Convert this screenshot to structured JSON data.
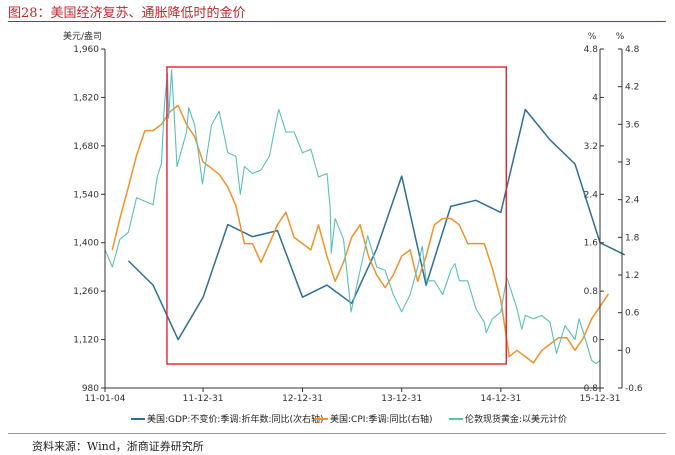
{
  "figure": {
    "title": "图28：美国经济复苏、通胀降低时的金价",
    "source": "资料来源：Wind，浙商证券研究所"
  },
  "chart_data": {
    "type": "line",
    "x_ticks": [
      "11-01-04",
      "11-12-31",
      "12-12-31",
      "13-12-31",
      "14-12-31",
      "15-12-31"
    ],
    "x_range": [
      "2011-01-04",
      "2015-12-31"
    ],
    "left_axis": {
      "unit": "美元/盎司",
      "ticks": [
        "980",
        "1,120",
        "1,260",
        "1,400",
        "1,540",
        "1,680",
        "1,820",
        "1,960"
      ],
      "range": [
        980,
        1960
      ]
    },
    "right_axis_1": {
      "unit": "%",
      "ticks": [
        "0.8",
        "0",
        "0.8",
        "1.6",
        "2.4",
        "3.2",
        "4",
        "4.8"
      ],
      "range": [
        -0.8,
        4.8
      ]
    },
    "right_axis_2": {
      "unit": "%",
      "ticks": [
        "-0.6",
        "0",
        "0.6",
        "1.2",
        "1.8",
        "2.4",
        "3",
        "3.6",
        "4.2",
        "4.8"
      ],
      "range": [
        -0.6,
        4.8
      ]
    },
    "highlight_box": {
      "from": "2011-08-20",
      "to": "2015-01-20",
      "color": "#e0262b"
    },
    "series": [
      {
        "name": "美国:GDP:不变价:季调:折年数:同比(次右轴)",
        "axis": "right_axis_1",
        "color": "#2e6f96",
        "points": [
          [
            "2011-03-31",
            1.3
          ],
          [
            "2011-06-30",
            0.9
          ],
          [
            "2011-09-30",
            0.0
          ],
          [
            "2011-12-31",
            0.7
          ],
          [
            "2012-03-31",
            1.9
          ],
          [
            "2012-06-30",
            1.7
          ],
          [
            "2012-09-30",
            1.8
          ],
          [
            "2012-12-31",
            0.7
          ],
          [
            "2013-03-31",
            0.9
          ],
          [
            "2013-06-30",
            0.6
          ],
          [
            "2013-09-30",
            1.5
          ],
          [
            "2013-12-31",
            2.7
          ],
          [
            "2014-03-31",
            0.9
          ],
          [
            "2014-06-30",
            2.2
          ],
          [
            "2014-09-30",
            2.3
          ],
          [
            "2014-12-31",
            2.1
          ],
          [
            "2015-03-31",
            3.8
          ],
          [
            "2015-06-30",
            3.3
          ],
          [
            "2015-09-30",
            2.9
          ],
          [
            "2015-12-31",
            1.6
          ],
          [
            "2016-03-31",
            1.4
          ]
        ]
      },
      {
        "name": "美国:CPI:季调:同比(右轴)",
        "axis": "right_axis_2",
        "color": "#f0932b",
        "points": [
          [
            "2011-01-31",
            1.6
          ],
          [
            "2011-02-28",
            2.1
          ],
          [
            "2011-03-31",
            2.6
          ],
          [
            "2011-04-30",
            3.1
          ],
          [
            "2011-05-31",
            3.5
          ],
          [
            "2011-06-30",
            3.5
          ],
          [
            "2011-07-31",
            3.6
          ],
          [
            "2011-08-31",
            3.8
          ],
          [
            "2011-09-30",
            3.9
          ],
          [
            "2011-10-31",
            3.6
          ],
          [
            "2011-11-30",
            3.4
          ],
          [
            "2011-12-31",
            3.0
          ],
          [
            "2012-01-31",
            2.9
          ],
          [
            "2012-02-29",
            2.8
          ],
          [
            "2012-03-31",
            2.6
          ],
          [
            "2012-04-30",
            2.3
          ],
          [
            "2012-05-31",
            1.7
          ],
          [
            "2012-06-30",
            1.7
          ],
          [
            "2012-07-31",
            1.4
          ],
          [
            "2012-08-31",
            1.7
          ],
          [
            "2012-09-30",
            2.0
          ],
          [
            "2012-10-31",
            2.2
          ],
          [
            "2012-11-30",
            1.8
          ],
          [
            "2012-12-31",
            1.7
          ],
          [
            "2013-01-31",
            1.6
          ],
          [
            "2013-02-28",
            2.0
          ],
          [
            "2013-03-31",
            1.5
          ],
          [
            "2013-04-30",
            1.1
          ],
          [
            "2013-05-31",
            1.4
          ],
          [
            "2013-06-30",
            1.8
          ],
          [
            "2013-07-31",
            2.0
          ],
          [
            "2013-08-31",
            1.5
          ],
          [
            "2013-09-30",
            1.2
          ],
          [
            "2013-10-31",
            1.0
          ],
          [
            "2013-11-30",
            1.2
          ],
          [
            "2013-12-31",
            1.5
          ],
          [
            "2014-01-31",
            1.6
          ],
          [
            "2014-02-28",
            1.1
          ],
          [
            "2014-03-31",
            1.5
          ],
          [
            "2014-04-30",
            2.0
          ],
          [
            "2014-05-31",
            2.1
          ],
          [
            "2014-06-30",
            2.1
          ],
          [
            "2014-07-31",
            2.0
          ],
          [
            "2014-08-31",
            1.7
          ],
          [
            "2014-09-30",
            1.7
          ],
          [
            "2014-10-31",
            1.7
          ],
          [
            "2014-11-30",
            1.3
          ],
          [
            "2014-12-31",
            0.8
          ],
          [
            "2015-01-31",
            -0.1
          ],
          [
            "2015-02-28",
            0.0
          ],
          [
            "2015-03-31",
            -0.1
          ],
          [
            "2015-04-30",
            -0.2
          ],
          [
            "2015-05-31",
            0.0
          ],
          [
            "2015-06-30",
            0.1
          ],
          [
            "2015-07-31",
            0.2
          ],
          [
            "2015-08-31",
            0.2
          ],
          [
            "2015-09-30",
            0.0
          ],
          [
            "2015-10-31",
            0.2
          ],
          [
            "2015-11-30",
            0.5
          ],
          [
            "2015-12-31",
            0.7
          ],
          [
            "2016-01-31",
            0.9
          ]
        ]
      },
      {
        "name": "伦敦现货黄金:以美元计价",
        "axis": "left_axis",
        "color": "#5bbfbf",
        "points": [
          [
            "2011-01-04",
            1380
          ],
          [
            "2011-01-31",
            1330
          ],
          [
            "2011-02-28",
            1410
          ],
          [
            "2011-03-31",
            1430
          ],
          [
            "2011-04-30",
            1530
          ],
          [
            "2011-05-31",
            1520
          ],
          [
            "2011-06-30",
            1510
          ],
          [
            "2011-07-15",
            1590
          ],
          [
            "2011-07-31",
            1630
          ],
          [
            "2011-08-10",
            1790
          ],
          [
            "2011-08-22",
            1890
          ],
          [
            "2011-08-26",
            1760
          ],
          [
            "2011-09-06",
            1900
          ],
          [
            "2011-09-15",
            1780
          ],
          [
            "2011-09-26",
            1620
          ],
          [
            "2011-10-31",
            1720
          ],
          [
            "2011-11-08",
            1790
          ],
          [
            "2011-11-30",
            1740
          ],
          [
            "2011-12-29",
            1570
          ],
          [
            "2012-01-31",
            1740
          ],
          [
            "2012-02-28",
            1780
          ],
          [
            "2012-03-31",
            1660
          ],
          [
            "2012-04-30",
            1650
          ],
          [
            "2012-05-16",
            1540
          ],
          [
            "2012-05-31",
            1620
          ],
          [
            "2012-06-30",
            1600
          ],
          [
            "2012-07-31",
            1610
          ],
          [
            "2012-08-31",
            1650
          ],
          [
            "2012-09-30",
            1770
          ],
          [
            "2012-10-05",
            1785
          ],
          [
            "2012-10-31",
            1720
          ],
          [
            "2012-11-30",
            1720
          ],
          [
            "2012-12-31",
            1660
          ],
          [
            "2013-01-31",
            1670
          ],
          [
            "2013-02-28",
            1590
          ],
          [
            "2013-03-31",
            1600
          ],
          [
            "2013-04-12",
            1500
          ],
          [
            "2013-04-16",
            1370
          ],
          [
            "2013-04-30",
            1470
          ],
          [
            "2013-05-31",
            1410
          ],
          [
            "2013-06-28",
            1200
          ],
          [
            "2013-07-31",
            1320
          ],
          [
            "2013-08-28",
            1420
          ],
          [
            "2013-09-30",
            1330
          ],
          [
            "2013-10-31",
            1320
          ],
          [
            "2013-11-30",
            1250
          ],
          [
            "2013-12-31",
            1200
          ],
          [
            "2014-01-31",
            1250
          ],
          [
            "2014-02-28",
            1330
          ],
          [
            "2014-03-17",
            1390
          ],
          [
            "2014-03-31",
            1290
          ],
          [
            "2014-04-30",
            1290
          ],
          [
            "2014-05-31",
            1250
          ],
          [
            "2014-06-30",
            1320
          ],
          [
            "2014-07-15",
            1340
          ],
          [
            "2014-07-31",
            1290
          ],
          [
            "2014-08-31",
            1290
          ],
          [
            "2014-09-30",
            1210
          ],
          [
            "2014-10-31",
            1170
          ],
          [
            "2014-11-07",
            1140
          ],
          [
            "2014-11-30",
            1180
          ],
          [
            "2014-12-31",
            1200
          ],
          [
            "2015-01-22",
            1300
          ],
          [
            "2015-02-28",
            1210
          ],
          [
            "2015-03-18",
            1150
          ],
          [
            "2015-03-31",
            1190
          ],
          [
            "2015-04-30",
            1180
          ],
          [
            "2015-05-31",
            1190
          ],
          [
            "2015-06-30",
            1170
          ],
          [
            "2015-07-24",
            1080
          ],
          [
            "2015-08-24",
            1160
          ],
          [
            "2015-09-30",
            1120
          ],
          [
            "2015-10-15",
            1180
          ],
          [
            "2015-10-31",
            1140
          ],
          [
            "2015-11-30",
            1060
          ],
          [
            "2015-12-17",
            1050
          ],
          [
            "2015-12-31",
            1060
          ]
        ]
      }
    ],
    "legend_position": "bottom"
  }
}
